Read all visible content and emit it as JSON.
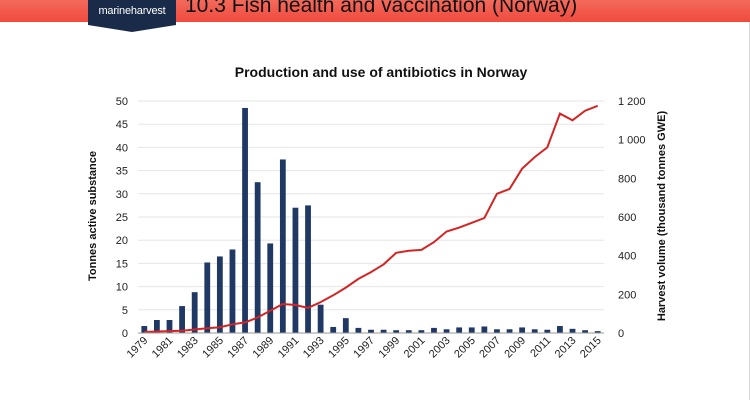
{
  "header": {
    "logo_text": "marineharvest",
    "title": "10.3 Fish health and vaccination (Norway)"
  },
  "chart_data": {
    "type": "bar",
    "title": "Production and use of antibiotics in Norway",
    "ylabel": "Tonnes active substance",
    "y2label": "Harvest volume (thousand tonnes GWE)",
    "ylim": [
      0,
      50
    ],
    "y2lim": [
      0,
      1200
    ],
    "yticks": [
      "0",
      "5",
      "10",
      "15",
      "20",
      "25",
      "30",
      "35",
      "40",
      "45",
      "50"
    ],
    "y2ticks": [
      "0",
      "200",
      "400",
      "600",
      "800",
      "1 000",
      "1 200"
    ],
    "categories": [
      "1979",
      "1980",
      "1981",
      "1982",
      "1983",
      "1984",
      "1985",
      "1986",
      "1987",
      "1988",
      "1989",
      "1990",
      "1991",
      "1992",
      "1993",
      "1994",
      "1995",
      "1996",
      "1997",
      "1998",
      "1999",
      "2000",
      "2001",
      "2002",
      "2003",
      "2004",
      "2005",
      "2006",
      "2007",
      "2008",
      "2009",
      "2010",
      "2011",
      "2012",
      "2013",
      "2014",
      "2015"
    ],
    "xtick_labels": [
      "1979",
      "1981",
      "1983",
      "1985",
      "1987",
      "1989",
      "1991",
      "1993",
      "1995",
      "1997",
      "1999",
      "2001",
      "2003",
      "2005",
      "2007",
      "2009",
      "2011",
      "2013",
      "2015"
    ],
    "bar_series": {
      "color": "#1f3864",
      "values": [
        1.5,
        2.8,
        2.8,
        5.8,
        8.8,
        15.2,
        16.5,
        18.0,
        48.5,
        32.5,
        19.3,
        37.4,
        27.0,
        27.5,
        6.1,
        1.3,
        3.2,
        1.1,
        0.7,
        0.7,
        0.6,
        0.6,
        0.6,
        1.1,
        0.8,
        1.2,
        1.2,
        1.4,
        0.8,
        0.8,
        1.2,
        0.8,
        0.7,
        1.5,
        0.9,
        0.6,
        0.4
      ]
    },
    "line_series": {
      "color": "#d42424",
      "values": [
        5,
        8,
        10,
        12,
        18,
        25,
        30,
        45,
        55,
        80,
        115,
        150,
        145,
        130,
        160,
        195,
        235,
        280,
        315,
        355,
        415,
        425,
        430,
        470,
        525,
        545,
        570,
        595,
        720,
        745,
        850,
        910,
        960,
        1135,
        1100,
        1150,
        1175
      ]
    }
  }
}
